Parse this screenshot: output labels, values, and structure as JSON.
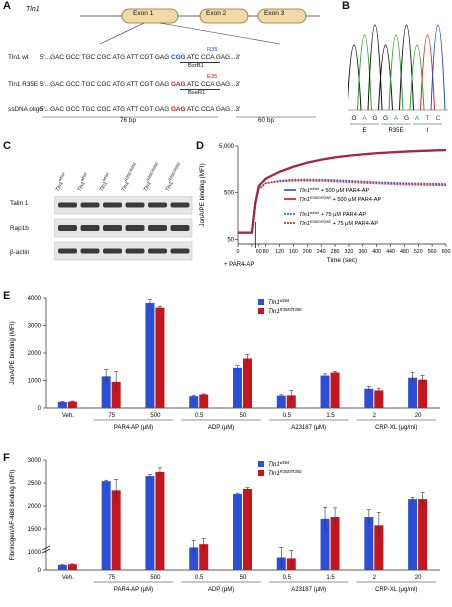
{
  "panel_A": {
    "label": "A",
    "gene": "Tln1",
    "exons": [
      "Exon 1",
      "Exon 2",
      "Exon 3"
    ],
    "rows": [
      {
        "name": "Tln1 wt",
        "prefix": "5'...GAC GCC TGC CGC ATG ATT CGT GAG ",
        "codon": "CGG",
        "suffix": " ATC CCA GAG...3'",
        "codon_color": "#1f4fbf",
        "tag": "R35",
        "enzyme": "BsrB1"
      },
      {
        "name": "Tln1 R35E",
        "prefix": "5'...GAC GCC TGC CGC ATG ATT CGT GAG ",
        "codon": "GAG",
        "suffix": " ATC CCA GAG...3'",
        "codon_color": "#c4161c",
        "tag": "E35",
        "enzyme": "BseR1"
      },
      {
        "name": "ssDNA oligo",
        "prefix": "5'...GAC GCC TGC CGC ATG ATT CGT GAG ",
        "codon": "GAG",
        "suffix": " ATC CCA GAG...3'",
        "codon_color": "#c4161c",
        "tag": "",
        "enzyme": ""
      }
    ],
    "len_left": "76 bp",
    "len_right": "60 bp"
  },
  "panel_B": {
    "label": "B",
    "bases": [
      "G",
      "A",
      "G",
      "G",
      "A",
      "G",
      "A",
      "T",
      "C"
    ],
    "base_colors": [
      "#111111",
      "#2ca02c",
      "#111111",
      "#111111",
      "#2ca02c",
      "#111111",
      "#2ca02c",
      "#d62728",
      "#1f4fbf"
    ],
    "aa": [
      "E",
      "R35E",
      "I"
    ]
  },
  "panel_C": {
    "label": "C",
    "lanes": [
      "Tln1wt/wt",
      "Tln1wt/wt",
      "Tln1wt/wt",
      "Tln1R35E/R35E",
      "Tln1R35E/R35E",
      "Tln1R35E/R35E"
    ],
    "lane_base": "Tln1",
    "lane_sups": [
      "wt/wt",
      "wt/wt",
      "wt/wt",
      "R35E/R35E",
      "R35E/R35E",
      "R35E/R35E"
    ],
    "rows": [
      "Talin 1",
      "Rap1b",
      "β-actin"
    ]
  },
  "panel_D": {
    "label": "D",
    "ylabel": "JonA/PE binding (MFI)",
    "xlabel": "Time (sec)",
    "arrow_label": "+ PAR4-AP",
    "legend": [
      {
        "base": "Tln1",
        "sup": "wt/wt",
        "rest": " + 500 μM PAR4-AP",
        "color": "#2b4fd6",
        "dash": false
      },
      {
        "base": "Tln1",
        "sup": "R35E/R35E",
        "rest": " + 500 μM PAR4-AP",
        "color": "#c4161c",
        "dash": false
      },
      {
        "base": "Tln1",
        "sup": "wt/wt",
        "rest": " + 75 μM PAR4-AP",
        "color": "#2b4fd6",
        "dash": true
      },
      {
        "base": "Tln1",
        "sup": "R35E/R35E",
        "rest": " + 75 μM PAR4-AP",
        "color": "#c4161c",
        "dash": true
      }
    ]
  },
  "chart_data": [
    {
      "type": "line",
      "panel": "D",
      "title": "",
      "xlabel": "Time (sec)",
      "ylabel": "JonA/PE binding (MFI)",
      "x_ticks": [
        0,
        40,
        60,
        80,
        120,
        160,
        200,
        240,
        280,
        320,
        360,
        400,
        440,
        480,
        520,
        560,
        600
      ],
      "y_ticks": [
        50,
        500,
        5000
      ],
      "y_tick_labels": [
        "50",
        "500",
        "5,000"
      ],
      "y_scale": "log",
      "xlim": [
        0,
        600
      ],
      "ylim": [
        40,
        5000
      ],
      "series": [
        {
          "name": "Tln1wt/wt + 500 μM PAR4-AP",
          "x": [
            0,
            40,
            50,
            60,
            80,
            120,
            160,
            200,
            240,
            280,
            320,
            360,
            400,
            440,
            480,
            520,
            560,
            600
          ],
          "y": [
            70,
            70,
            300,
            700,
            1000,
            1400,
            1800,
            2200,
            2550,
            2850,
            3100,
            3300,
            3500,
            3650,
            3800,
            3900,
            4000,
            4100
          ]
        },
        {
          "name": "Tln1R35E/R35E + 500 μM PAR4-AP",
          "x": [
            0,
            40,
            50,
            60,
            80,
            120,
            160,
            200,
            240,
            280,
            320,
            360,
            400,
            440,
            480,
            520,
            560,
            600
          ],
          "y": [
            70,
            70,
            300,
            700,
            1000,
            1400,
            1800,
            2200,
            2550,
            2850,
            3100,
            3300,
            3500,
            3650,
            3800,
            3900,
            4000,
            4100
          ]
        },
        {
          "name": "Tln1wt/wt + 75 μM PAR4-AP",
          "x": [
            0,
            40,
            50,
            60,
            80,
            120,
            160,
            200,
            240,
            280,
            320,
            360,
            400,
            440,
            480,
            520,
            560,
            600
          ],
          "y": [
            70,
            70,
            300,
            600,
            800,
            900,
            950,
            960,
            950,
            930,
            900,
            870,
            840,
            820,
            800,
            790,
            780,
            770
          ]
        },
        {
          "name": "Tln1R35E/R35E + 75 μM PAR4-AP",
          "x": [
            0,
            40,
            50,
            60,
            80,
            120,
            160,
            200,
            240,
            280,
            320,
            360,
            400,
            440,
            480,
            520,
            560,
            600
          ],
          "y": [
            70,
            70,
            300,
            600,
            800,
            870,
            900,
            900,
            890,
            870,
            840,
            810,
            790,
            770,
            750,
            740,
            730,
            720
          ]
        }
      ]
    },
    {
      "type": "bar",
      "panel": "E",
      "title": "",
      "ylabel": "JonA/PE binding (MFI)",
      "ylim": [
        0,
        4000
      ],
      "y_ticks": [
        0,
        1000,
        2000,
        3000,
        4000
      ],
      "categories": [
        "Veh.",
        "75",
        "500",
        "0.5",
        "50",
        "0.5",
        "1.5",
        "2",
        "20"
      ],
      "groups": [
        {
          "label": "PAR4-AP (μM)",
          "from": 1,
          "to": 2
        },
        {
          "label": "ADP (μM)",
          "from": 3,
          "to": 4
        },
        {
          "label": "A23187 (μM)",
          "from": 5,
          "to": 6
        },
        {
          "label": "CRP-XL (μg/ml)",
          "from": 7,
          "to": 8
        }
      ],
      "legend_position": "top-right",
      "series": [
        {
          "name": "Tln1wt/wt",
          "color": "#2b4fd6",
          "values": [
            220,
            1150,
            3820,
            430,
            1460,
            450,
            1180,
            700,
            1100
          ],
          "errors": [
            20,
            250,
            120,
            20,
            80,
            30,
            60,
            80,
            200
          ]
        },
        {
          "name": "Tln1R35E/R35E",
          "color": "#c4161c",
          "values": [
            230,
            950,
            3650,
            490,
            1800,
            460,
            1290,
            640,
            1030
          ],
          "errors": [
            20,
            370,
            50,
            20,
            150,
            170,
            40,
            80,
            160
          ]
        }
      ]
    },
    {
      "type": "bar",
      "panel": "F",
      "title": "",
      "ylabel": "Fibrinogen/AF-488 binding (MFI)",
      "ylim": [
        0,
        3000
      ],
      "y_ticks": [
        0,
        1000,
        1500,
        2000,
        2500,
        3000
      ],
      "y_tick_labels": [
        "0",
        "1000",
        "1500",
        "2000",
        "2500",
        "3000"
      ],
      "y_axis_break": "500-1000",
      "categories": [
        "Veh.",
        "75",
        "500",
        "0.5",
        "50",
        "0.5",
        "1.5",
        "2",
        "20"
      ],
      "groups": [
        {
          "label": "PAR4-AP (μM)",
          "from": 1,
          "to": 2
        },
        {
          "label": "ADP (μM)",
          "from": 3,
          "to": 4
        },
        {
          "label": "A23187 (μM)",
          "from": 5,
          "to": 6
        },
        {
          "label": "CRP-XL (μg/ml)",
          "from": 7,
          "to": 8
        }
      ],
      "legend_position": "top-right",
      "series": [
        {
          "name": "Tln1wt/wt",
          "color": "#2b4fd6",
          "values": [
            140,
            2540,
            2650,
            1100,
            2260,
            880,
            1720,
            1760,
            2150
          ],
          "errors": [
            10,
            20,
            40,
            150,
            20,
            220,
            250,
            160,
            40
          ]
        },
        {
          "name": "Tln1R35E/R35E",
          "color": "#c4161c",
          "values": [
            160,
            2340,
            2740,
            1170,
            2370,
            860,
            1760,
            1580,
            2150
          ],
          "errors": [
            10,
            240,
            90,
            120,
            30,
            170,
            200,
            280,
            140
          ]
        }
      ]
    }
  ],
  "panel_E": {
    "label": "E",
    "legend": [
      {
        "base": "Tln1",
        "sup": "wt/wt"
      },
      {
        "base": "Tln1",
        "sup": "R35E/R35E"
      }
    ]
  },
  "panel_F": {
    "label": "F",
    "legend": [
      {
        "base": "Tln1",
        "sup": "wt/wt"
      },
      {
        "base": "Tln1",
        "sup": "R35E/R35E"
      }
    ]
  },
  "colors": {
    "blue": "#2b4fd6",
    "red": "#c4161c",
    "exon": "#f3d9a6",
    "exon_border": "#8a6d3b"
  }
}
